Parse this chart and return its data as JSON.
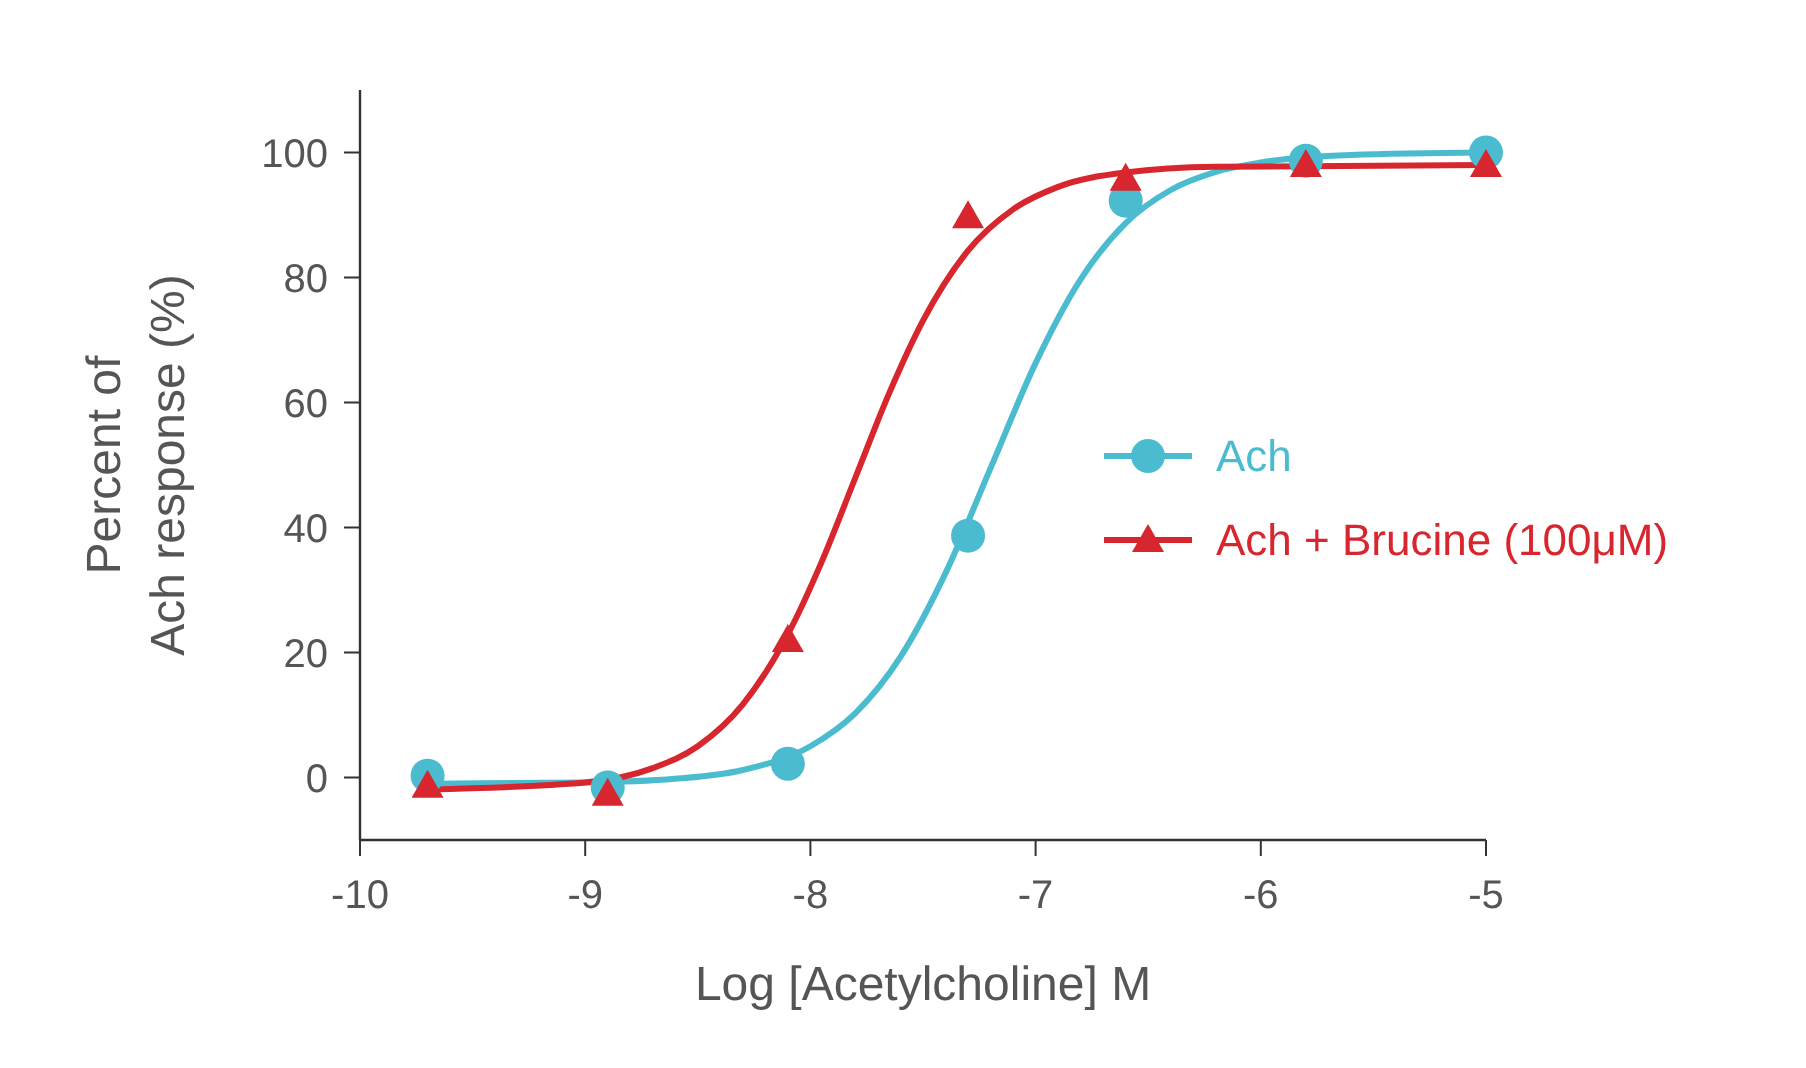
{
  "chart_data": {
    "type": "scatter",
    "xlabel": "Log [Acetylcholine] M",
    "ylabel": "Percent of\nAch response (%)",
    "xlim": [
      -10,
      -5
    ],
    "ylim": [
      -10,
      110
    ],
    "xticks": [
      -10,
      -9,
      -8,
      -7,
      -6,
      -5
    ],
    "yticks": [
      0,
      20,
      40,
      60,
      80,
      100
    ],
    "grid": false,
    "legend": "right",
    "series": [
      {
        "type": "line",
        "color": "#4bbcd0",
        "marker": "none",
        "x": [
          -9.7,
          -9.0,
          -8.6,
          -8.3,
          -8.0,
          -7.8,
          -7.6,
          -7.4,
          -7.2,
          -7.0,
          -6.8,
          -6.6,
          -6.4,
          -6.2,
          -6.0,
          -5.6,
          -5.0
        ],
        "values": [
          -1.0,
          -0.8,
          -0.2,
          1.2,
          5.0,
          10.3,
          19.3,
          32.7,
          49.5,
          66.3,
          79.7,
          88.7,
          94.0,
          96.9,
          98.4,
          99.6,
          100
        ]
      },
      {
        "type": "line",
        "color": "#d7262e",
        "marker": "none",
        "x": [
          -9.7,
          -9.0,
          -8.7,
          -8.5,
          -8.3,
          -8.1,
          -7.95,
          -7.8,
          -7.65,
          -7.5,
          -7.3,
          -7.1,
          -6.9,
          -6.6,
          -6.2,
          -5.0
        ],
        "values": [
          -1.9,
          -0.8,
          1.5,
          5.0,
          11.7,
          22.9,
          34.5,
          48,
          61.5,
          73.1,
          84.3,
          90.9,
          94.5,
          96.8,
          97.7,
          98
        ]
      },
      {
        "name": "Ach",
        "color": "#4bbcd0",
        "marker": "circle",
        "x": [
          -9.7,
          -8.9,
          -8.1,
          -7.3,
          -6.6,
          -5.8,
          -5.0
        ],
        "values": [
          0.3,
          -1.6,
          2.2,
          38.7,
          92.3,
          98.7,
          100
        ]
      },
      {
        "name": "Ach + Brucine (100μM)",
        "color": "#d7262e",
        "marker": "triangle",
        "x": [
          -9.7,
          -8.9,
          -8.1,
          -7.3,
          -6.6,
          -5.8,
          -5.0
        ],
        "values": [
          -1.3,
          -2.6,
          22,
          89.8,
          95.8,
          98,
          98
        ]
      }
    ]
  }
}
